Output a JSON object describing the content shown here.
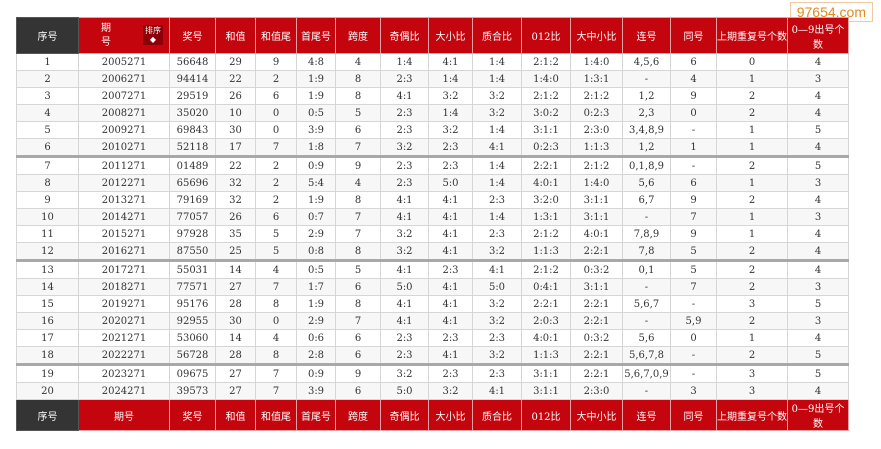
{
  "watermark": "97654.com",
  "header": {
    "cols": [
      "序号",
      "期号",
      "奖号",
      "和值",
      "和值尾",
      "首尾号",
      "跨度",
      "奇偶比",
      "大小比",
      "质合比",
      "012比",
      "大中小比",
      "连号",
      "同号",
      "上期重复号个数",
      "0—9出号个数"
    ],
    "qihao_line1": "期",
    "qihao_line2": "号",
    "sort_label": "排序",
    "sort_icon": "◆"
  },
  "rows": [
    [
      "1",
      "2005271",
      "56648",
      "29",
      "9",
      "4:8",
      "4",
      "1:4",
      "4:1",
      "1:4",
      "2:1:2",
      "1:4:0",
      "4,5,6",
      "6",
      "0",
      "4"
    ],
    [
      "2",
      "2006271",
      "94414",
      "22",
      "2",
      "1:9",
      "8",
      "2:3",
      "1:4",
      "1:4",
      "1:4:0",
      "1:3:1",
      "-",
      "4",
      "1",
      "3"
    ],
    [
      "3",
      "2007271",
      "29519",
      "26",
      "6",
      "1:9",
      "8",
      "4:1",
      "3:2",
      "3:2",
      "2:1:2",
      "2:1:2",
      "1,2",
      "9",
      "2",
      "4"
    ],
    [
      "4",
      "2008271",
      "35020",
      "10",
      "0",
      "0:5",
      "5",
      "2:3",
      "1:4",
      "3:2",
      "3:0:2",
      "0:2:3",
      "2,3",
      "0",
      "2",
      "4"
    ],
    [
      "5",
      "2009271",
      "69843",
      "30",
      "0",
      "3:9",
      "6",
      "2:3",
      "3:2",
      "1:4",
      "3:1:1",
      "2:3:0",
      "3,4,8,9",
      "-",
      "1",
      "5"
    ],
    [
      "6",
      "2010271",
      "52118",
      "17",
      "7",
      "1:8",
      "7",
      "3:2",
      "2:3",
      "4:1",
      "0:2:3",
      "1:1:3",
      "1,2",
      "1",
      "1",
      "4"
    ],
    [
      "7",
      "2011271",
      "01489",
      "22",
      "2",
      "0:9",
      "9",
      "2:3",
      "2:3",
      "1:4",
      "2:2:1",
      "2:1:2",
      "0,1,8,9",
      "-",
      "2",
      "5"
    ],
    [
      "8",
      "2012271",
      "65696",
      "32",
      "2",
      "5:4",
      "4",
      "2:3",
      "5:0",
      "1:4",
      "4:0:1",
      "1:4:0",
      "5,6",
      "6",
      "1",
      "3"
    ],
    [
      "9",
      "2013271",
      "79169",
      "32",
      "2",
      "1:9",
      "8",
      "4:1",
      "4:1",
      "2:3",
      "3:2:0",
      "3:1:1",
      "6,7",
      "9",
      "2",
      "4"
    ],
    [
      "10",
      "2014271",
      "77057",
      "26",
      "6",
      "0:7",
      "7",
      "4:1",
      "4:1",
      "1:4",
      "1:3:1",
      "3:1:1",
      "-",
      "7",
      "1",
      "3"
    ],
    [
      "11",
      "2015271",
      "97928",
      "35",
      "5",
      "2:9",
      "7",
      "3:2",
      "4:1",
      "2:3",
      "2:1:2",
      "4:0:1",
      "7,8,9",
      "9",
      "1",
      "4"
    ],
    [
      "12",
      "2016271",
      "87550",
      "25",
      "5",
      "0:8",
      "8",
      "3:2",
      "4:1",
      "3:2",
      "1:1:3",
      "2:2:1",
      "7,8",
      "5",
      "2",
      "4"
    ],
    [
      "13",
      "2017271",
      "55031",
      "14",
      "4",
      "0:5",
      "5",
      "4:1",
      "2:3",
      "4:1",
      "2:1:2",
      "0:3:2",
      "0,1",
      "5",
      "2",
      "4"
    ],
    [
      "14",
      "2018271",
      "77571",
      "27",
      "7",
      "1:7",
      "6",
      "5:0",
      "4:1",
      "5:0",
      "0:4:1",
      "3:1:1",
      "-",
      "7",
      "2",
      "3"
    ],
    [
      "15",
      "2019271",
      "95176",
      "28",
      "8",
      "1:9",
      "8",
      "4:1",
      "4:1",
      "3:2",
      "2:2:1",
      "2:2:1",
      "5,6,7",
      "-",
      "3",
      "5"
    ],
    [
      "16",
      "2020271",
      "92955",
      "30",
      "0",
      "2:9",
      "7",
      "4:1",
      "4:1",
      "3:2",
      "2:0:3",
      "2:2:1",
      "-",
      "5,9",
      "2",
      "3"
    ],
    [
      "17",
      "2021271",
      "53060",
      "14",
      "4",
      "0:6",
      "6",
      "2:3",
      "2:3",
      "2:3",
      "4:0:1",
      "0:3:2",
      "5,6",
      "0",
      "1",
      "4"
    ],
    [
      "18",
      "2022271",
      "56728",
      "28",
      "8",
      "2:8",
      "6",
      "2:3",
      "4:1",
      "3:2",
      "1:1:3",
      "2:2:1",
      "5,6,7,8",
      "-",
      "2",
      "5"
    ],
    [
      "19",
      "2023271",
      "09675",
      "27",
      "7",
      "0:9",
      "9",
      "3:2",
      "2:3",
      "2:3",
      "3:1:1",
      "2:2:1",
      "5,6,7,0,9",
      "-",
      "3",
      "5"
    ],
    [
      "20",
      "2024271",
      "39573",
      "27",
      "7",
      "3:9",
      "6",
      "5:0",
      "3:2",
      "4:1",
      "3:1:1",
      "2:3:0",
      "-",
      "3",
      "3",
      "4"
    ]
  ],
  "footer": {
    "cols": [
      "序号",
      "期号",
      "奖号",
      "和值",
      "和值尾",
      "首尾号",
      "跨度",
      "奇偶比",
      "大小比",
      "质合比",
      "012比",
      "大中小比",
      "连号",
      "同号",
      "上期重复号个数",
      "0—9出号个数"
    ]
  }
}
